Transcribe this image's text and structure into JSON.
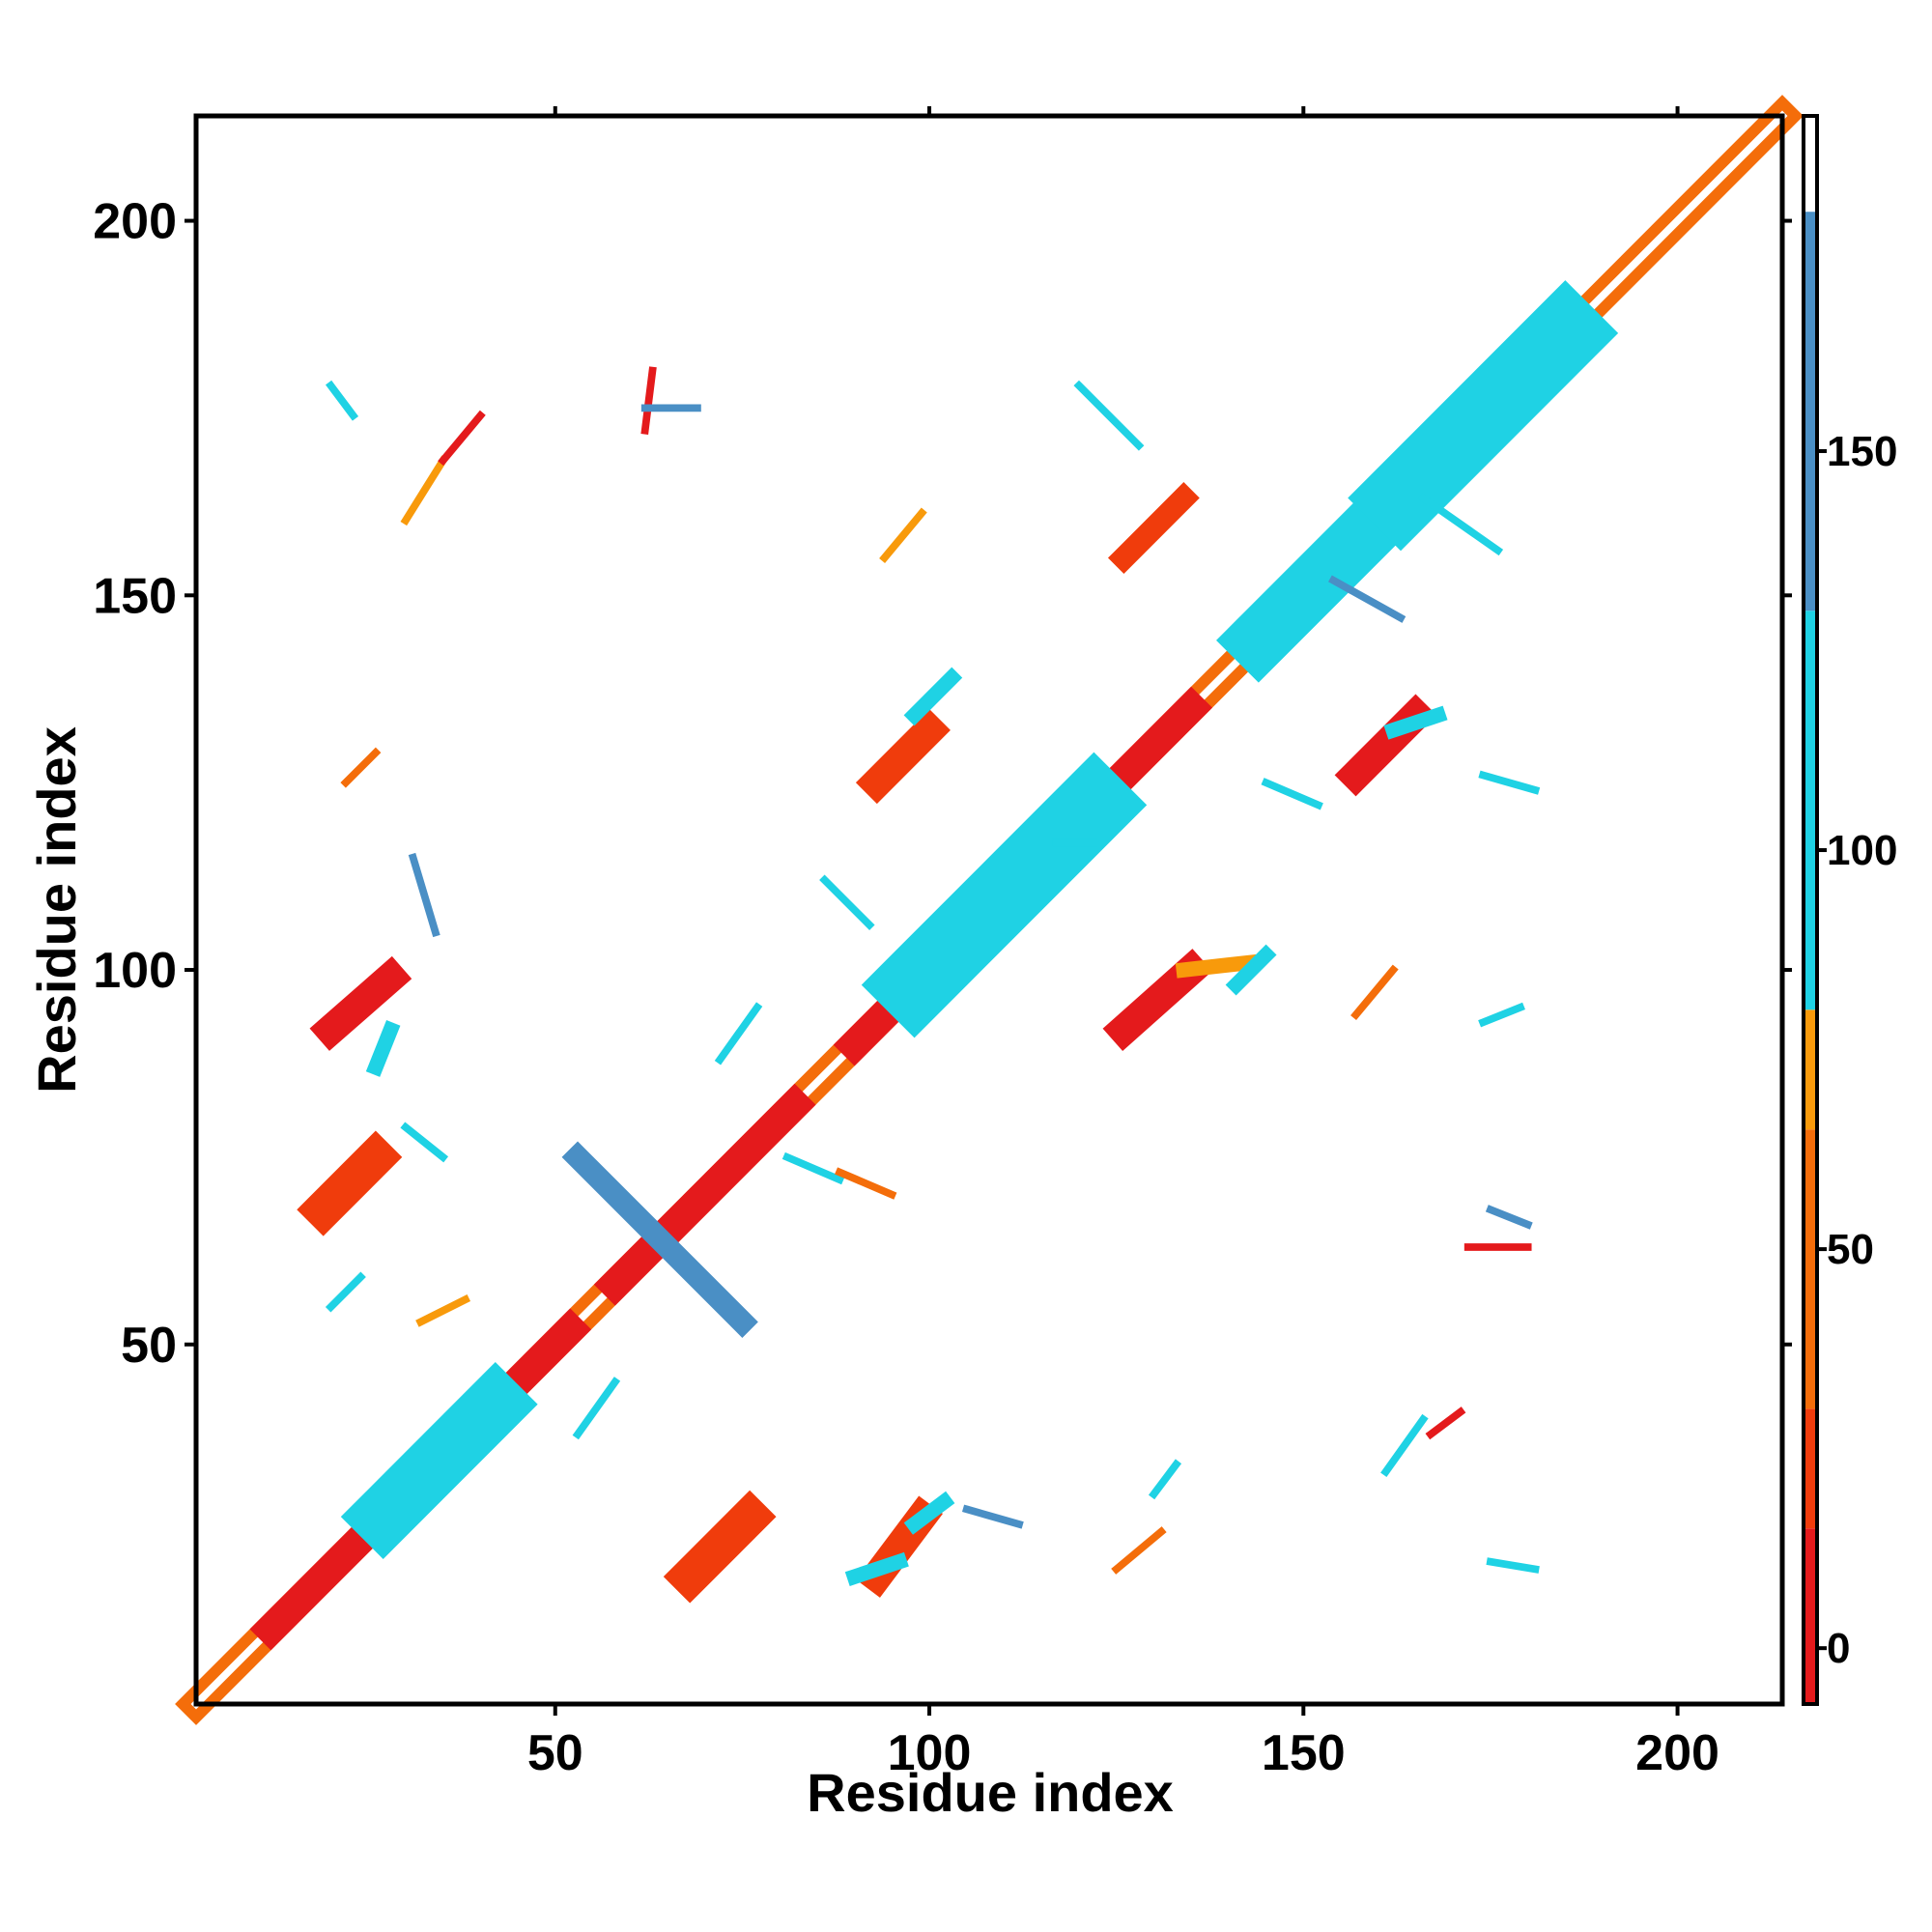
{
  "chart_data": {
    "type": "heatmap",
    "title": "",
    "xlabel": "Residue index",
    "ylabel": "Residue index",
    "xlim": [
      2,
      214
    ],
    "ylim": [
      2,
      214
    ],
    "x_ticks": [
      50,
      100,
      150,
      200
    ],
    "y_ticks": [
      50,
      100,
      150,
      200
    ],
    "grid": false,
    "colorbar": {
      "ticks": [
        0,
        50,
        100,
        150
      ],
      "range": [
        -7,
        192
      ],
      "bands": [
        {
          "from": -7,
          "to": 15,
          "color": "#e41a1c"
        },
        {
          "from": 15,
          "to": 30,
          "color": "#f03c0c"
        },
        {
          "from": 30,
          "to": 65,
          "color": "#f46d0a"
        },
        {
          "from": 65,
          "to": 80,
          "color": "#f89a0b"
        },
        {
          "from": 80,
          "to": 130,
          "color": "#1fd2e4"
        },
        {
          "from": 130,
          "to": 180,
          "color": "#4a8fc5"
        },
        {
          "from": 180,
          "to": 192,
          "color": "#ffffff"
        }
      ]
    },
    "features": [
      {
        "kind": "band",
        "x": [
          2,
          214
        ],
        "y": [
          2,
          214
        ],
        "color": "#f46d0a",
        "width": 4
      },
      {
        "kind": "band",
        "x": [
          2,
          214
        ],
        "y": [
          2,
          214
        ],
        "color": "#ffffff",
        "width": 1
      },
      {
        "kind": "band",
        "x": [
          12,
          52
        ],
        "y": [
          12,
          52
        ],
        "color": "#e41a1c",
        "width": 4
      },
      {
        "kind": "band",
        "x": [
          58,
          82
        ],
        "y": [
          58,
          82
        ],
        "color": "#e41a1c",
        "width": 4
      },
      {
        "kind": "band",
        "x": [
          90,
          100
        ],
        "y": [
          90,
          100
        ],
        "color": "#e41a1c",
        "width": 4
      },
      {
        "kind": "band",
        "x": [
          118,
          135
        ],
        "y": [
          118,
          135
        ],
        "color": "#e41a1c",
        "width": 4
      },
      {
        "kind": "band",
        "x": [
          27,
          42
        ],
        "y": [
          27,
          42
        ],
        "color": "#1fd2e4",
        "width": 8
      },
      {
        "kind": "band",
        "x": [
          98,
          122
        ],
        "y": [
          98,
          122
        ],
        "color": "#1fd2e4",
        "width": 10
      },
      {
        "kind": "band",
        "x": [
          144,
          157
        ],
        "y": [
          144,
          157
        ],
        "color": "#1fd2e4",
        "width": 8
      },
      {
        "kind": "band",
        "x": [
          163,
          185
        ],
        "y": [
          163,
          185
        ],
        "color": "#1fd2e4",
        "width": 10
      },
      {
        "kind": "band",
        "x": [
          53,
          75
        ],
        "y": [
          75,
          53
        ],
        "color": "#4a8fc5",
        "width": 3
      },
      {
        "kind": "band",
        "x": [
          68,
          76
        ],
        "y": [
          19,
          27
        ],
        "color": "#f03c0c",
        "width": 5
      },
      {
        "kind": "band",
        "x": [
          93,
          99
        ],
        "y": [
          19,
          27
        ],
        "color": "#f03c0c",
        "width": 4
      },
      {
        "kind": "band",
        "x": [
          19,
          26
        ],
        "y": [
          68,
          75
        ],
        "color": "#f03c0c",
        "width": 5
      },
      {
        "kind": "band",
        "x": [
          20,
          28
        ],
        "y": [
          92,
          99
        ],
        "color": "#e41a1c",
        "width": 4
      },
      {
        "kind": "band",
        "x": [
          93,
          100
        ],
        "y": [
          125,
          132
        ],
        "color": "#f03c0c",
        "width": 4
      },
      {
        "kind": "band",
        "x": [
          126,
          135
        ],
        "y": [
          92,
          100
        ],
        "color": "#e41a1c",
        "width": 4
      },
      {
        "kind": "band",
        "x": [
          126,
          134
        ],
        "y": [
          155,
          163
        ],
        "color": "#f03c0c",
        "width": 3
      },
      {
        "kind": "band",
        "x": [
          157,
          165
        ],
        "y": [
          126,
          134
        ],
        "color": "#e41a1c",
        "width": 4
      },
      {
        "kind": "band",
        "x": [
          134,
          143
        ],
        "y": [
          100,
          101
        ],
        "color": "#f89a0b",
        "width": 2
      },
      {
        "kind": "band",
        "x": [
          98,
          103
        ],
        "y": [
          134,
          139
        ],
        "color": "#1fd2e4",
        "width": 2
      },
      {
        "kind": "band",
        "x": [
          26,
          28
        ],
        "y": [
          87,
          92
        ],
        "color": "#1fd2e4",
        "width": 2
      },
      {
        "kind": "band",
        "x": [
          90,
          96
        ],
        "y": [
          19,
          21
        ],
        "color": "#1fd2e4",
        "width": 2
      },
      {
        "kind": "band",
        "x": [
          141,
          145
        ],
        "y": [
          98,
          102
        ],
        "color": "#1fd2e4",
        "width": 2
      },
      {
        "kind": "band",
        "x": [
          162,
          168
        ],
        "y": [
          132,
          134
        ],
        "color": "#1fd2e4",
        "width": 2
      },
      {
        "kind": "band",
        "x": [
          98,
          102
        ],
        "y": [
          26,
          29
        ],
        "color": "#1fd2e4",
        "width": 2
      },
      {
        "kind": "band",
        "x": [
          30,
          35
        ],
        "y": [
          160,
          168
        ],
        "color": "#f89a0b",
        "width": 1
      },
      {
        "kind": "band",
        "x": [
          35,
          40
        ],
        "y": [
          168,
          174
        ],
        "color": "#e41a1c",
        "width": 1
      },
      {
        "kind": "band",
        "x": [
          22,
          26
        ],
        "y": [
          125,
          129
        ],
        "color": "#f46d0a",
        "width": 1
      },
      {
        "kind": "band",
        "x": [
          125,
          131
        ],
        "y": [
          20,
          25
        ],
        "color": "#f46d0a",
        "width": 1
      },
      {
        "kind": "band",
        "x": [
          20,
          24
        ],
        "y": [
          55,
          59
        ],
        "color": "#1fd2e4",
        "width": 1
      },
      {
        "kind": "band",
        "x": [
          32,
          38
        ],
        "y": [
          53,
          56
        ],
        "color": "#f89a0b",
        "width": 1
      },
      {
        "kind": "band",
        "x": [
          53,
          58
        ],
        "y": [
          38,
          45
        ],
        "color": "#1fd2e4",
        "width": 1
      },
      {
        "kind": "band",
        "x": [
          72,
          77
        ],
        "y": [
          88,
          95
        ],
        "color": "#1fd2e4",
        "width": 1
      },
      {
        "kind": "band",
        "x": [
          86,
          92
        ],
        "y": [
          112,
          106
        ],
        "color": "#1fd2e4",
        "width": 1
      },
      {
        "kind": "band",
        "x": [
          94,
          99
        ],
        "y": [
          155,
          161
        ],
        "color": "#f89a0b",
        "width": 1
      },
      {
        "kind": "band",
        "x": [
          120,
          128
        ],
        "y": [
          178,
          170
        ],
        "color": "#1fd2e4",
        "width": 1
      },
      {
        "kind": "band",
        "x": [
          145,
          152
        ],
        "y": [
          125,
          122
        ],
        "color": "#1fd2e4",
        "width": 1
      },
      {
        "kind": "band",
        "x": [
          157,
          162
        ],
        "y": [
          94,
          100
        ],
        "color": "#f46d0a",
        "width": 1
      },
      {
        "kind": "band",
        "x": [
          161,
          166
        ],
        "y": [
          33,
          40
        ],
        "color": "#1fd2e4",
        "width": 1
      },
      {
        "kind": "band",
        "x": [
          167,
          171
        ],
        "y": [
          38,
          41
        ],
        "color": "#e41a1c",
        "width": 1
      },
      {
        "kind": "band",
        "x": [
          105,
          112
        ],
        "y": [
          28,
          26
        ],
        "color": "#4a8fc5",
        "width": 1
      },
      {
        "kind": "band",
        "x": [
          30,
          35
        ],
        "y": [
          79,
          75
        ],
        "color": "#1fd2e4",
        "width": 1
      },
      {
        "kind": "band",
        "x": [
          31,
          34
        ],
        "y": [
          115,
          105
        ],
        "color": "#4a8fc5",
        "width": 1
      },
      {
        "kind": "band",
        "x": [
          81,
          88
        ],
        "y": [
          75,
          72
        ],
        "color": "#1fd2e4",
        "width": 1
      },
      {
        "kind": "band",
        "x": [
          88,
          95
        ],
        "y": [
          73,
          70
        ],
        "color": "#f46d0a",
        "width": 1
      },
      {
        "kind": "band",
        "x": [
          172,
          180
        ],
        "y": [
          63,
          63
        ],
        "color": "#e41a1c",
        "width": 1
      },
      {
        "kind": "band",
        "x": [
          175,
          180
        ],
        "y": [
          68,
          66
        ],
        "color": "#4a8fc5",
        "width": 1
      },
      {
        "kind": "band",
        "x": [
          174,
          179
        ],
        "y": [
          93,
          95
        ],
        "color": "#1fd2e4",
        "width": 1
      },
      {
        "kind": "band",
        "x": [
          175,
          181
        ],
        "y": [
          21,
          20
        ],
        "color": "#1fd2e4",
        "width": 1
      },
      {
        "kind": "band",
        "x": [
          130,
          133
        ],
        "y": [
          30,
          34
        ],
        "color": "#1fd2e4",
        "width": 1
      },
      {
        "kind": "band",
        "x": [
          62,
          63
        ],
        "y": [
          172,
          180
        ],
        "color": "#e41a1c",
        "width": 1
      },
      {
        "kind": "band",
        "x": [
          62,
          69
        ],
        "y": [
          175,
          175
        ],
        "color": "#4a8fc5",
        "width": 1
      },
      {
        "kind": "band",
        "x": [
          20,
          23
        ],
        "y": [
          178,
          174
        ],
        "color": "#1fd2e4",
        "width": 1
      },
      {
        "kind": "band",
        "x": [
          154,
          163
        ],
        "y": [
          152,
          147
        ],
        "color": "#4a8fc5",
        "width": 1
      },
      {
        "kind": "band",
        "x": [
          166,
          176
        ],
        "y": [
          163,
          156
        ],
        "color": "#1fd2e4",
        "width": 1
      },
      {
        "kind": "band",
        "x": [
          174,
          181
        ],
        "y": [
          126,
          124
        ],
        "color": "#1fd2e4",
        "width": 1
      },
      {
        "kind": "band",
        "x": [
          117,
          122
        ],
        "y": [
          117,
          117
        ],
        "color": "#1fd2e4",
        "width": 1
      }
    ]
  }
}
